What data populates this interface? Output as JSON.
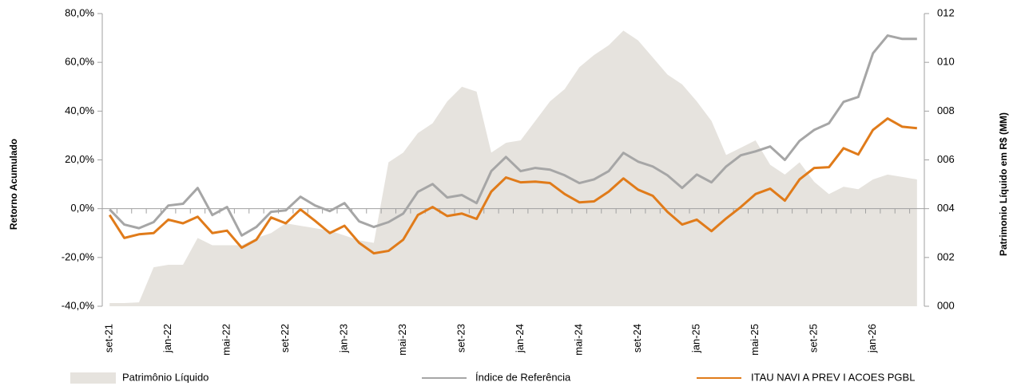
{
  "chart_data": {
    "type": "line",
    "categories": [
      "set-21",
      null,
      null,
      null,
      "jan-22",
      null,
      null,
      null,
      "mai-22",
      null,
      null,
      null,
      "set-22",
      null,
      null,
      null,
      "jan-23",
      null,
      null,
      null,
      "mai-23",
      null,
      null,
      null,
      "set-23",
      null,
      null,
      null,
      "jan-24",
      null,
      null,
      null,
      "mai-24",
      null,
      null,
      null,
      "set-24",
      null,
      null,
      null,
      "jan-25",
      null,
      null,
      null,
      "mai-25",
      null,
      null,
      null,
      "set-25",
      null,
      null,
      null,
      "jan-26",
      null,
      null,
      null
    ],
    "series": [
      {
        "name": "Patrimônio Líquido",
        "color": "#e6e3de",
        "kind": "area",
        "axis": "y2",
        "values": [
          0.13,
          0.13,
          0.16,
          1.6,
          1.7,
          1.7,
          2.8,
          2.5,
          2.5,
          2.5,
          2.8,
          3.0,
          3.4,
          3.3,
          3.2,
          3.1,
          2.9,
          2.7,
          2.6,
          5.9,
          6.3,
          7.1,
          7.5,
          8.4,
          9.0,
          8.8,
          6.3,
          6.7,
          6.8,
          7.6,
          8.4,
          8.9,
          9.8,
          10.3,
          10.7,
          11.3,
          10.9,
          10.2,
          9.5,
          9.1,
          8.4,
          7.6,
          6.2,
          6.5,
          6.8,
          5.8,
          5.4,
          5.9,
          5.1,
          4.6,
          4.9,
          4.8,
          5.2,
          5.4,
          5.3,
          5.2
        ]
      },
      {
        "name": "Índice de Referência",
        "color": "#a6a6a6",
        "kind": "line",
        "values": [
          -0.3,
          -6.5,
          -8,
          -5.5,
          1.3,
          2,
          8.5,
          -2.6,
          0.7,
          -11,
          -7.5,
          -1.3,
          -0.7,
          4.9,
          1.3,
          -1,
          2.3,
          -5.2,
          -7.5,
          -5.5,
          -2,
          6.9,
          10.1,
          4.6,
          5.6,
          2.3,
          15.4,
          21.2,
          15.4,
          16.7,
          16,
          13.7,
          10.5,
          12,
          15.4,
          22.9,
          19.3,
          17.3,
          13.7,
          8.5,
          14,
          10.8,
          17.3,
          21.9,
          23.5,
          25.5,
          20,
          27.8,
          32.3,
          35,
          43.8,
          45.8,
          63.7,
          71,
          69.6,
          69.6
        ]
      },
      {
        "name": "ITAU NAVI A PREV I ACOES PGBL",
        "color": "#e07b1a",
        "kind": "line",
        "values": [
          -2.6,
          -12,
          -10.5,
          -10,
          -4.5,
          -6,
          -3.3,
          -10,
          -9,
          -16,
          -12.7,
          -3.6,
          -6,
          -0.3,
          -5,
          -10,
          -7,
          -14,
          -18.3,
          -17.3,
          -12.7,
          -2.6,
          0.7,
          -3,
          -2,
          -4.2,
          7,
          12.8,
          10.8,
          11.1,
          10.5,
          6,
          2.6,
          3,
          7,
          12.4,
          7.8,
          5.3,
          -1.3,
          -6.5,
          -4.5,
          -9.2,
          -4,
          0.7,
          6,
          8.2,
          3.3,
          12,
          16.7,
          17,
          24.8,
          22.2,
          32.3,
          37,
          33.6,
          33
        ]
      }
    ],
    "ylabel": "Retorno Acumulado",
    "y2label": "Patrimonio Líquido em R$ (MM)",
    "ylim": [
      -40,
      80
    ],
    "yticks": [
      {
        "value": -40,
        "label": "-40,0%"
      },
      {
        "value": -20,
        "label": "-20,0%"
      },
      {
        "value": 0,
        "label": "0,0%"
      },
      {
        "value": 20,
        "label": "20,0%"
      },
      {
        "value": 40,
        "label": "40,0%"
      },
      {
        "value": 60,
        "label": "60,0%"
      },
      {
        "value": 80,
        "label": "80,0%"
      }
    ],
    "y2lim": [
      0,
      12
    ],
    "y2ticks": [
      {
        "value": 0,
        "label": "000"
      },
      {
        "value": 2,
        "label": "002"
      },
      {
        "value": 4,
        "label": "004"
      },
      {
        "value": 6,
        "label": "006"
      },
      {
        "value": 8,
        "label": "008"
      },
      {
        "value": 10,
        "label": "010"
      },
      {
        "value": 12,
        "label": "012"
      }
    ],
    "grid": false,
    "legend": "bottom"
  }
}
